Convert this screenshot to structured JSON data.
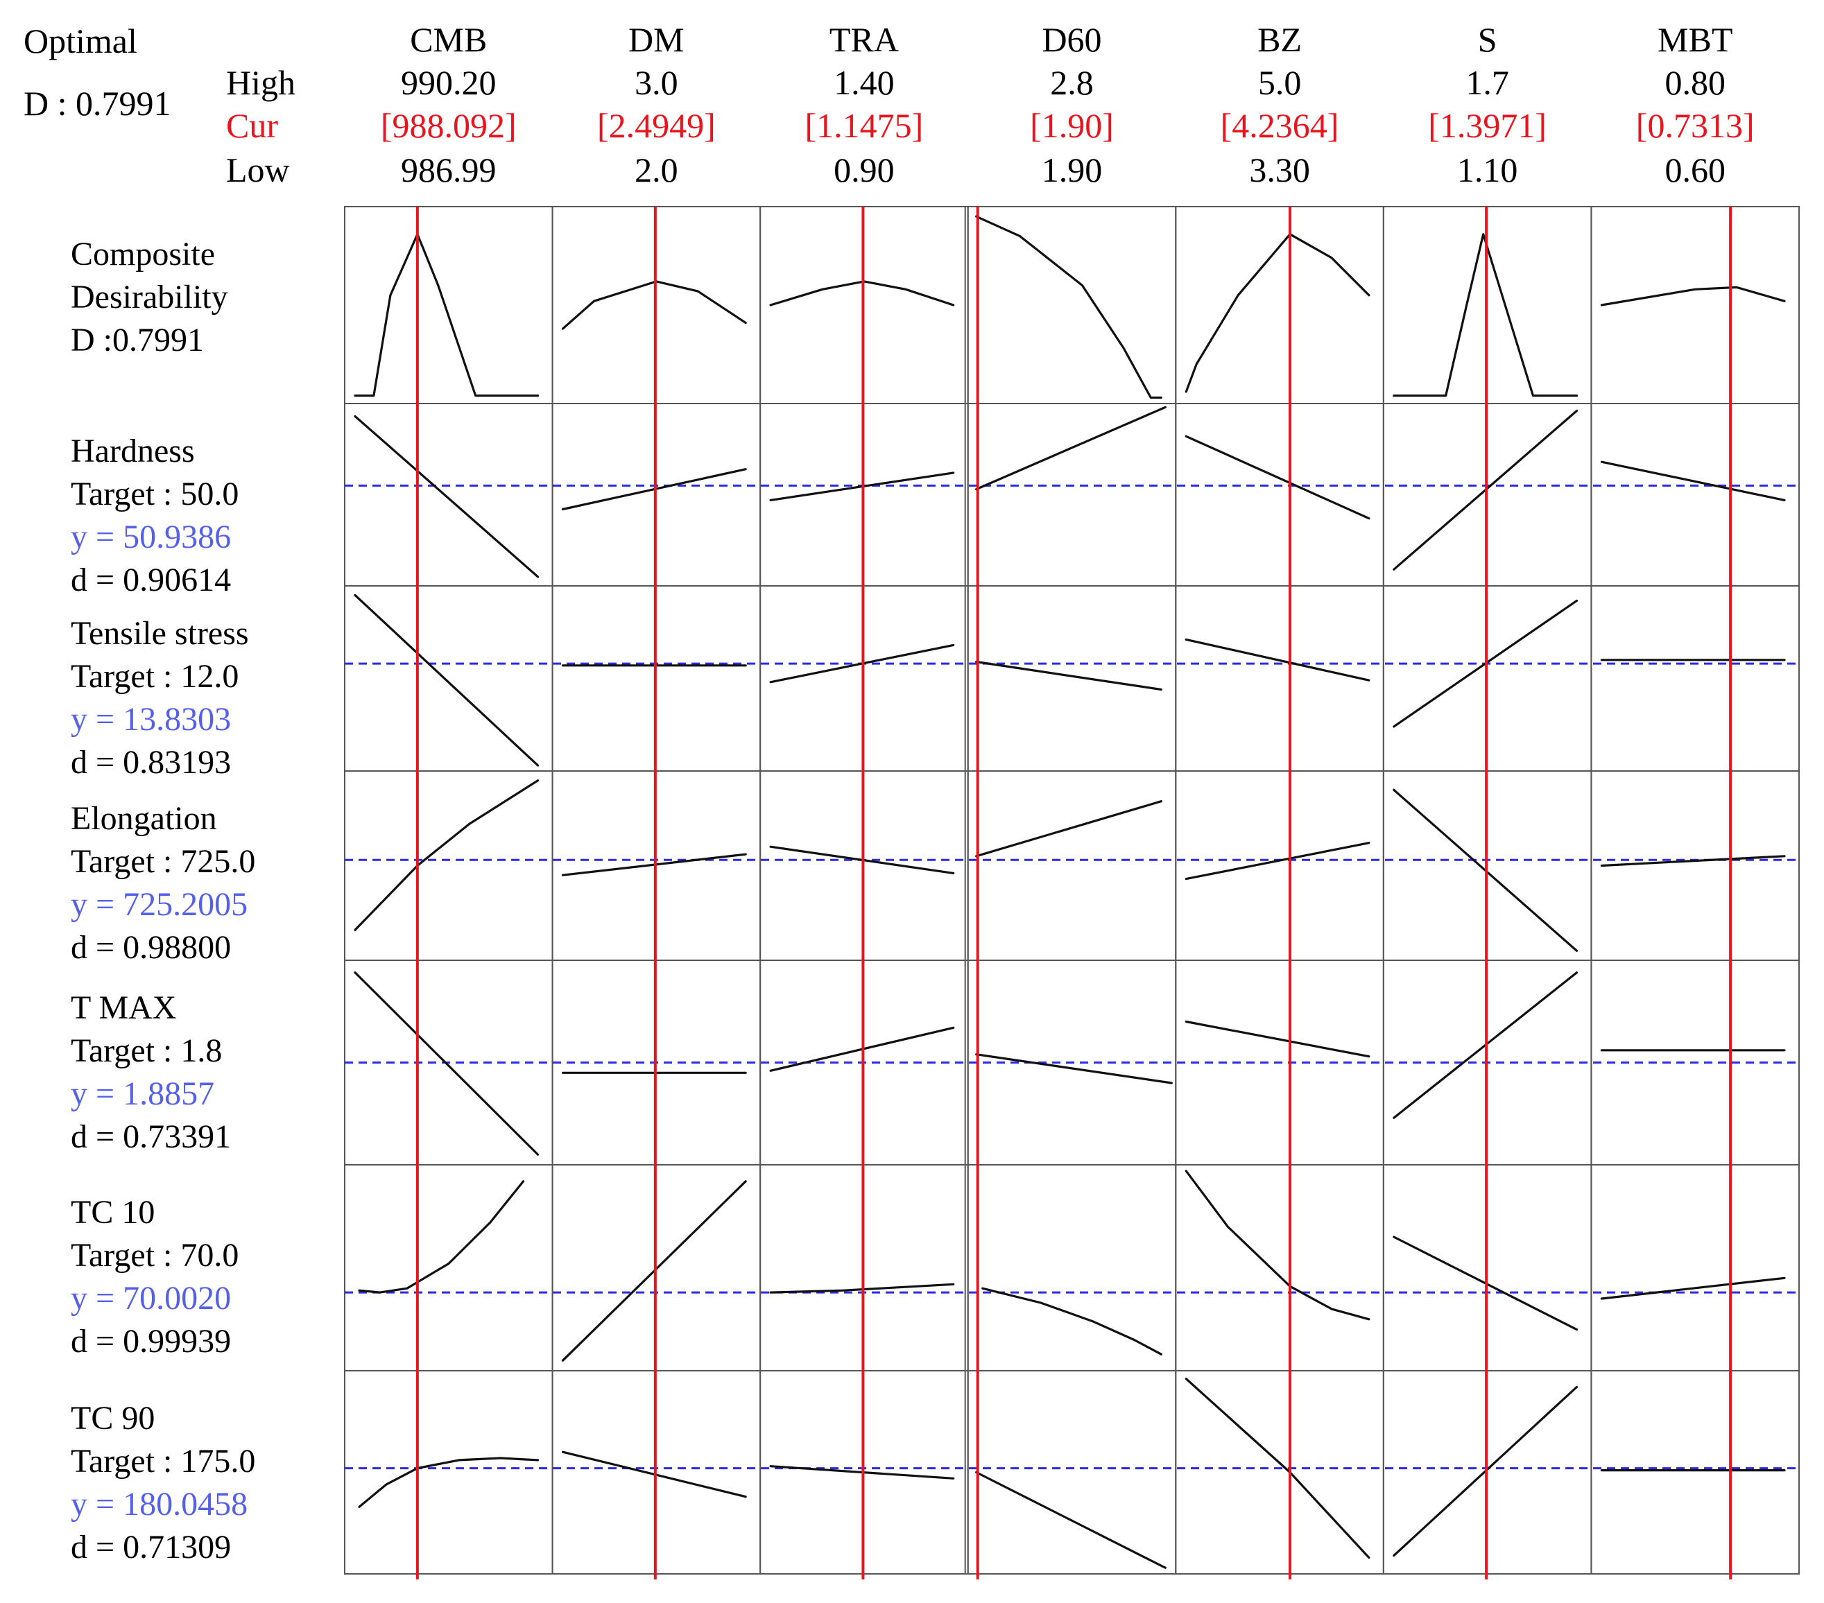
{
  "header": {
    "optimal_label": "Optimal",
    "d_label": "D : 0.7991",
    "high_label": "High",
    "cur_label": "Cur",
    "low_label": "Low"
  },
  "colors": {
    "current_line": "#e8141e",
    "target_line": "#2a2ae8",
    "y_text": "#5560e8",
    "curve": "#111111",
    "grid": "#555555"
  },
  "chart_data": {
    "type": "optimization-plot",
    "title": "Optimal",
    "composite_desirability": 0.7991,
    "factors": [
      {
        "name": "CMB",
        "high": "990.20",
        "cur": "[988.092]",
        "low": "986.99"
      },
      {
        "name": "DM",
        "high": "3.0",
        "cur": "[2.4949]",
        "low": "2.0"
      },
      {
        "name": "TRA",
        "high": "1.40",
        "cur": "[1.1475]",
        "low": "0.90"
      },
      {
        "name": "D60",
        "high": "2.8",
        "cur": "[1.90]",
        "low": "1.90"
      },
      {
        "name": "BZ",
        "high": "5.0",
        "cur": "[4.2364]",
        "low": "3.30"
      },
      {
        "name": "S",
        "high": "1.7",
        "cur": "[1.3971]",
        "low": "1.10"
      },
      {
        "name": "MBT",
        "high": "0.80",
        "cur": "[0.7313]",
        "low": "0.60"
      }
    ],
    "rows": [
      {
        "name": "Composite\nDesirability",
        "lines": [
          "Composite",
          "Desirability",
          "D :0.7991"
        ],
        "target": null,
        "y": null,
        "d": null,
        "is_composite": true
      },
      {
        "name": "Hardness",
        "lines": [
          "Hardness",
          "Target  : 50.0",
          "y = 50.9386",
          "d = 0.90614"
        ]
      },
      {
        "name": "Tensile stress",
        "lines": [
          "Tensile stress",
          "Target  : 12.0",
          "y = 13.8303",
          "d = 0.83193"
        ]
      },
      {
        "name": "Elongation",
        "lines": [
          "Elongation",
          "Target  : 725.0",
          "y = 725.2005",
          "d = 0.98800"
        ]
      },
      {
        "name": "T MAX",
        "lines": [
          "T MAX",
          "Target  : 1.8",
          "y = 1.8857",
          "d = 0.73391"
        ]
      },
      {
        "name": "TC 10",
        "lines": [
          "TC 10",
          "Target  : 70.0",
          "y = 70.0020",
          "d = 0.99939"
        ]
      },
      {
        "name": "TC 90",
        "lines": [
          "TC 90",
          "Target  : 175.0",
          "y = 180.0458",
          "d = 0.71309"
        ]
      }
    ],
    "current_position": [
      0.35,
      0.495,
      0.495,
      0.0,
      0.55,
      0.495,
      0.67
    ],
    "target_level": [
      null,
      0.55,
      0.58,
      0.53,
      0.5,
      0.38,
      0.52
    ],
    "curves": [
      [
        [
          [
            0.05,
            0.04
          ],
          [
            0.14,
            0.04
          ],
          [
            0.22,
            0.55
          ],
          [
            0.35,
            0.86
          ],
          [
            0.45,
            0.6
          ],
          [
            0.63,
            0.04
          ],
          [
            0.93,
            0.04
          ]
        ],
        [
          [
            0.05,
            0.38
          ],
          [
            0.2,
            0.52
          ],
          [
            0.5,
            0.62
          ],
          [
            0.7,
            0.57
          ],
          [
            0.93,
            0.41
          ]
        ],
        [
          [
            0.05,
            0.5
          ],
          [
            0.3,
            0.58
          ],
          [
            0.5,
            0.62
          ],
          [
            0.7,
            0.58
          ],
          [
            0.93,
            0.5
          ]
        ],
        [
          [
            0.04,
            0.95
          ],
          [
            0.25,
            0.85
          ],
          [
            0.55,
            0.6
          ],
          [
            0.75,
            0.28
          ],
          [
            0.88,
            0.03
          ],
          [
            0.93,
            0.03
          ]
        ],
        [
          [
            0.05,
            0.06
          ],
          [
            0.1,
            0.2
          ],
          [
            0.3,
            0.55
          ],
          [
            0.55,
            0.86
          ],
          [
            0.75,
            0.74
          ],
          [
            0.93,
            0.55
          ]
        ],
        [
          [
            0.05,
            0.04
          ],
          [
            0.3,
            0.04
          ],
          [
            0.4,
            0.5
          ],
          [
            0.48,
            0.86
          ],
          [
            0.6,
            0.45
          ],
          [
            0.72,
            0.04
          ],
          [
            0.93,
            0.04
          ]
        ],
        [
          [
            0.05,
            0.5
          ],
          [
            0.5,
            0.58
          ],
          [
            0.7,
            0.59
          ],
          [
            0.93,
            0.52
          ]
        ]
      ],
      [
        [
          [
            0.05,
            0.93
          ],
          [
            0.93,
            0.05
          ]
        ],
        [
          [
            0.05,
            0.42
          ],
          [
            0.93,
            0.64
          ]
        ],
        [
          [
            0.05,
            0.47
          ],
          [
            0.93,
            0.62
          ]
        ],
        [
          [
            0.04,
            0.53
          ],
          [
            0.95,
            0.98
          ]
        ],
        [
          [
            0.05,
            0.82
          ],
          [
            0.93,
            0.37
          ]
        ],
        [
          [
            0.05,
            0.09
          ],
          [
            0.93,
            0.96
          ]
        ],
        [
          [
            0.05,
            0.68
          ],
          [
            0.93,
            0.47
          ]
        ]
      ],
      [
        [
          [
            0.05,
            0.95
          ],
          [
            0.93,
            0.03
          ]
        ],
        [
          [
            0.05,
            0.57
          ],
          [
            0.93,
            0.57
          ]
        ],
        [
          [
            0.05,
            0.48
          ],
          [
            0.93,
            0.68
          ]
        ],
        [
          [
            0.04,
            0.59
          ],
          [
            0.93,
            0.44
          ]
        ],
        [
          [
            0.05,
            0.71
          ],
          [
            0.93,
            0.49
          ]
        ],
        [
          [
            0.05,
            0.24
          ],
          [
            0.93,
            0.92
          ]
        ],
        [
          [
            0.05,
            0.6
          ],
          [
            0.93,
            0.6
          ]
        ]
      ],
      [
        [
          [
            0.05,
            0.16
          ],
          [
            0.35,
            0.5
          ],
          [
            0.6,
            0.72
          ],
          [
            0.93,
            0.95
          ]
        ],
        [
          [
            0.05,
            0.45
          ],
          [
            0.93,
            0.56
          ]
        ],
        [
          [
            0.05,
            0.6
          ],
          [
            0.93,
            0.46
          ]
        ],
        [
          [
            0.04,
            0.55
          ],
          [
            0.93,
            0.84
          ]
        ],
        [
          [
            0.05,
            0.43
          ],
          [
            0.93,
            0.62
          ]
        ],
        [
          [
            0.05,
            0.9
          ],
          [
            0.93,
            0.05
          ]
        ],
        [
          [
            0.05,
            0.5
          ],
          [
            0.93,
            0.55
          ]
        ]
      ],
      [
        [
          [
            0.05,
            0.94
          ],
          [
            0.93,
            0.05
          ]
        ],
        [
          [
            0.05,
            0.45
          ],
          [
            0.93,
            0.45
          ]
        ],
        [
          [
            0.05,
            0.46
          ],
          [
            0.93,
            0.67
          ]
        ],
        [
          [
            0.04,
            0.54
          ],
          [
            0.98,
            0.4
          ]
        ],
        [
          [
            0.05,
            0.7
          ],
          [
            0.93,
            0.53
          ]
        ],
        [
          [
            0.05,
            0.23
          ],
          [
            0.93,
            0.94
          ]
        ],
        [
          [
            0.05,
            0.56
          ],
          [
            0.93,
            0.56
          ]
        ]
      ],
      [
        [
          [
            0.07,
            0.39
          ],
          [
            0.17,
            0.38
          ],
          [
            0.3,
            0.4
          ],
          [
            0.5,
            0.52
          ],
          [
            0.7,
            0.72
          ],
          [
            0.86,
            0.92
          ]
        ],
        [
          [
            0.05,
            0.05
          ],
          [
            0.93,
            0.92
          ]
        ],
        [
          [
            0.05,
            0.38
          ],
          [
            0.4,
            0.39
          ],
          [
            0.93,
            0.42
          ]
        ],
        [
          [
            0.07,
            0.4
          ],
          [
            0.35,
            0.33
          ],
          [
            0.6,
            0.24
          ],
          [
            0.8,
            0.15
          ],
          [
            0.93,
            0.08
          ]
        ],
        [
          [
            0.05,
            0.97
          ],
          [
            0.25,
            0.7
          ],
          [
            0.55,
            0.41
          ],
          [
            0.75,
            0.3
          ],
          [
            0.93,
            0.25
          ]
        ],
        [
          [
            0.05,
            0.65
          ],
          [
            0.93,
            0.2
          ]
        ],
        [
          [
            0.05,
            0.35
          ],
          [
            0.93,
            0.45
          ]
        ]
      ],
      [
        [
          [
            0.07,
            0.33
          ],
          [
            0.2,
            0.44
          ],
          [
            0.35,
            0.52
          ],
          [
            0.55,
            0.56
          ],
          [
            0.75,
            0.57
          ],
          [
            0.93,
            0.56
          ]
        ],
        [
          [
            0.05,
            0.6
          ],
          [
            0.93,
            0.38
          ]
        ],
        [
          [
            0.05,
            0.53
          ],
          [
            0.93,
            0.47
          ]
        ],
        [
          [
            0.04,
            0.5
          ],
          [
            0.95,
            0.03
          ]
        ],
        [
          [
            0.05,
            0.96
          ],
          [
            0.55,
            0.5
          ],
          [
            0.93,
            0.08
          ]
        ],
        [
          [
            0.05,
            0.09
          ],
          [
            0.93,
            0.92
          ]
        ],
        [
          [
            0.05,
            0.51
          ],
          [
            0.93,
            0.51
          ]
        ]
      ]
    ]
  }
}
